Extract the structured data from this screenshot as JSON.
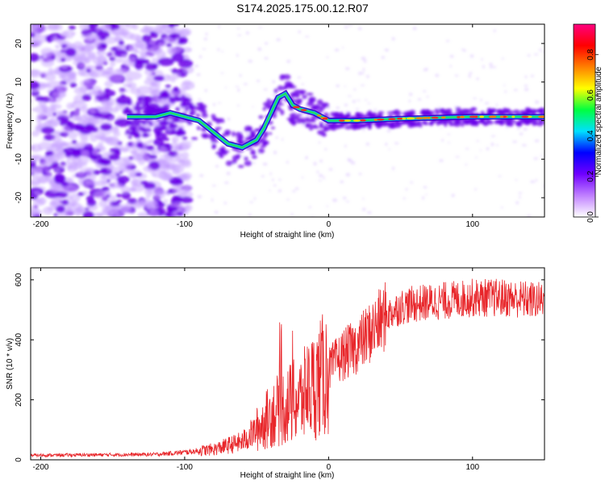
{
  "title": "S174.2025.175.00.12.R07",
  "colors": {
    "snr_line": "#e8262a",
    "spectrogram_faint": "#c8a4ff",
    "spectrogram_strong": "#6a00e8",
    "colorbar_stops": [
      "#ffffff",
      "#c080ff",
      "#7000ff",
      "#0000ff",
      "#00e0ff",
      "#00ff40",
      "#ffff00",
      "#ff8000",
      "#ff0000",
      "#ff0080"
    ]
  },
  "chart_data": [
    {
      "type": "heatmap",
      "xlabel": "Height of straight line (km)",
      "ylabel": "Frequency (Hz)",
      "xlim": [
        -207,
        150
      ],
      "ylim": [
        -25,
        25
      ],
      "xticks": [
        -200,
        -100,
        0,
        100
      ],
      "yticks": [
        -20,
        -10,
        0,
        10,
        20
      ],
      "colorbar": {
        "label": "Normalized spectral amplitude",
        "range": [
          0,
          0.95
        ],
        "ticks": [
          0.0,
          0.2,
          0.4,
          0.6,
          0.8
        ]
      },
      "ridge": {
        "x": [
          -140,
          -120,
          -110,
          -100,
          -90,
          -80,
          -70,
          -60,
          -50,
          -45,
          -40,
          -35,
          -30,
          -25,
          -20,
          -10,
          0,
          10,
          20,
          50,
          100,
          150
        ],
        "y": [
          1,
          1,
          2,
          1,
          0,
          -3,
          -6,
          -7,
          -5,
          -2,
          2,
          6,
          7,
          4,
          3,
          2,
          0,
          0,
          0,
          0.5,
          1,
          1
        ]
      }
    },
    {
      "type": "line",
      "xlabel": "Height of straight line (km)",
      "ylabel": "SNR (10 * v/v)",
      "xlim": [
        -207,
        150
      ],
      "ylim": [
        0,
        640
      ],
      "xticks": [
        -200,
        -100,
        0,
        100
      ],
      "yticks": [
        0,
        200,
        400,
        600
      ],
      "trend": {
        "x": [
          -207,
          -120,
          -100,
          -80,
          -60,
          -50,
          -40,
          -30,
          -20,
          -10,
          0,
          10,
          20,
          30,
          40,
          50,
          60,
          80,
          100,
          120,
          150
        ],
        "y": [
          15,
          18,
          25,
          35,
          60,
          100,
          150,
          180,
          200,
          250,
          300,
          350,
          380,
          430,
          480,
          510,
          520,
          530,
          540,
          540,
          530
        ]
      }
    }
  ]
}
